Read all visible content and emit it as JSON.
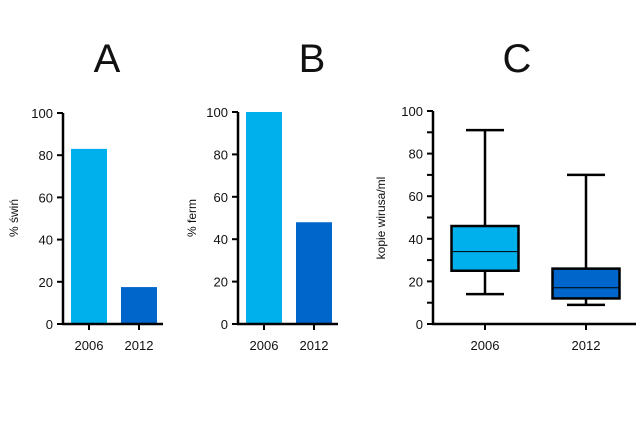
{
  "colors": {
    "c2006": "#00b0ec",
    "c2012": "#0066cc",
    "axis": "#000000"
  },
  "chart_data": [
    {
      "type": "bar",
      "title": "A",
      "ylabel": "% świń",
      "categories": [
        "2006",
        "2012"
      ],
      "values": [
        83,
        17.5
      ],
      "ylim": [
        0,
        100
      ],
      "yticks": [
        "0",
        "20",
        "40",
        "60",
        "80",
        "100"
      ],
      "grid": false
    },
    {
      "type": "bar",
      "title": "B",
      "ylabel": "% ferm",
      "categories": [
        "2006",
        "2012"
      ],
      "values": [
        100,
        48
      ],
      "ylim": [
        0,
        100
      ],
      "yticks": [
        "0",
        "20",
        "40",
        "60",
        "80",
        "100"
      ],
      "grid": false
    },
    {
      "type": "box",
      "title": "C",
      "ylabel": "kopie wirusa/ml",
      "categories": [
        "2006",
        "2012"
      ],
      "boxes": [
        {
          "min": 14,
          "q1": 25,
          "median": 34,
          "q3": 46,
          "max": 91
        },
        {
          "min": 9,
          "q1": 12,
          "median": 17,
          "q3": 26,
          "max": 70
        }
      ],
      "ylim": [
        0,
        100
      ],
      "yticks": [
        "0",
        "20",
        "40",
        "60",
        "80",
        "100"
      ],
      "grid": false
    }
  ]
}
